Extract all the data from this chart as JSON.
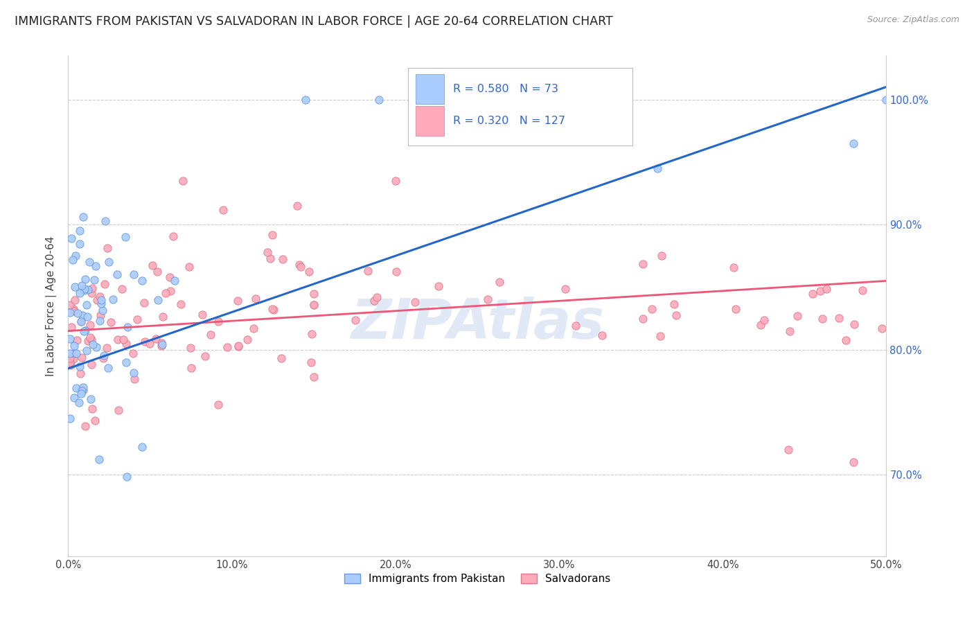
{
  "title": "IMMIGRANTS FROM PAKISTAN VS SALVADORAN IN LABOR FORCE | AGE 20-64 CORRELATION CHART",
  "source": "Source: ZipAtlas.com",
  "ylabel": "In Labor Force | Age 20-64",
  "xlim": [
    0.0,
    0.5
  ],
  "ylim": [
    0.635,
    1.035
  ],
  "xtick_vals": [
    0.0,
    0.1,
    0.2,
    0.3,
    0.4,
    0.5
  ],
  "xtick_labels": [
    "0.0%",
    "10.0%",
    "20.0%",
    "30.0%",
    "40.0%",
    "50.0%"
  ],
  "ytick_vals": [
    0.7,
    0.8,
    0.9,
    1.0
  ],
  "ytick_labels_right": [
    "70.0%",
    "80.0%",
    "90.0%",
    "100.0%"
  ],
  "pakistan_color": "#aaccff",
  "pakistan_edge": "#6699dd",
  "salvadoran_color": "#ffaabb",
  "salvadoran_edge": "#dd7788",
  "pakistan_line_color": "#2266cc",
  "salvadoran_line_color": "#ee5577",
  "R_pakistan": 0.58,
  "N_pakistan": 73,
  "R_salvadoran": 0.32,
  "N_salvadoran": 127,
  "legend_label_1": "Immigrants from Pakistan",
  "legend_label_2": "Salvadorans",
  "watermark": "ZIPAtlas",
  "title_fontsize": 12.5,
  "label_fontsize": 11,
  "tick_fontsize": 10.5,
  "background_color": "#ffffff",
  "grid_color": "#cccccc",
  "right_tick_color": "#3366cc",
  "legend_R_color": "#3366cc",
  "legend_N_color": "#3366cc"
}
